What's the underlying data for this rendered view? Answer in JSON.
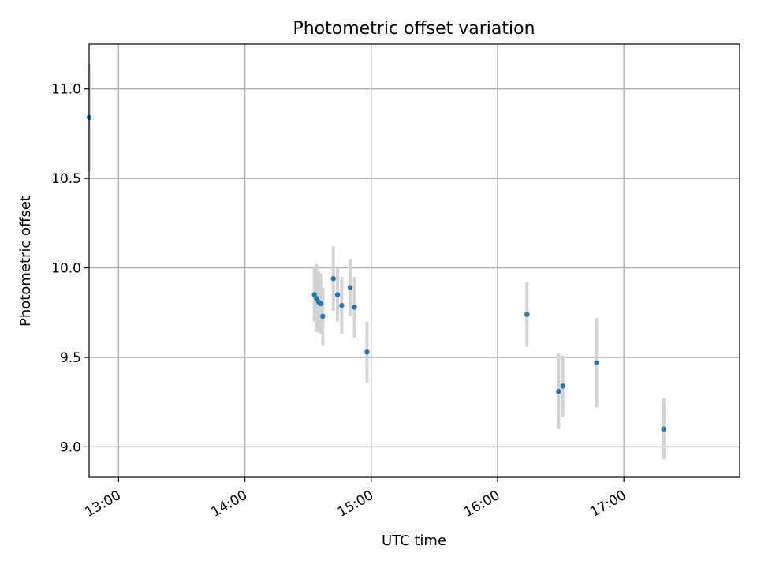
{
  "chart_data": {
    "type": "scatter",
    "title": "Photometric offset variation",
    "xlabel": "UTC time",
    "ylabel": "Photometric offset",
    "x_type": "time",
    "xlim": [
      "12:46",
      "17:55"
    ],
    "ylim": [
      8.83,
      11.25
    ],
    "x_ticks": [
      "13:00",
      "14:00",
      "15:00",
      "16:00",
      "17:00"
    ],
    "y_ticks": [
      9.0,
      9.5,
      10.0,
      10.5,
      11.0
    ],
    "y_tick_labels": [
      "9.0",
      "9.5",
      "10.0",
      "10.5",
      "11.0"
    ],
    "grid": true,
    "colors": {
      "marker": "#1f77b4",
      "error_bar": "#d3d3d3",
      "grid": "#b0b0b0"
    },
    "series": [
      {
        "x": [
          "12:46",
          "14:33",
          "14:34",
          "14:35",
          "14:36",
          "14:37",
          "14:42",
          "14:44",
          "14:46",
          "14:50",
          "14:52",
          "14:58",
          "16:14",
          "16:29",
          "16:31",
          "16:47",
          "17:19"
        ],
        "y": [
          10.84,
          9.85,
          9.83,
          9.81,
          9.8,
          9.73,
          9.94,
          9.85,
          9.79,
          9.89,
          9.78,
          9.53,
          9.74,
          9.31,
          9.34,
          9.47,
          9.1
        ],
        "y_err": [
          0.3,
          0.15,
          0.19,
          0.17,
          0.17,
          0.16,
          0.18,
          0.15,
          0.16,
          0.16,
          0.17,
          0.17,
          0.18,
          0.21,
          0.17,
          0.25,
          0.17
        ]
      }
    ]
  }
}
